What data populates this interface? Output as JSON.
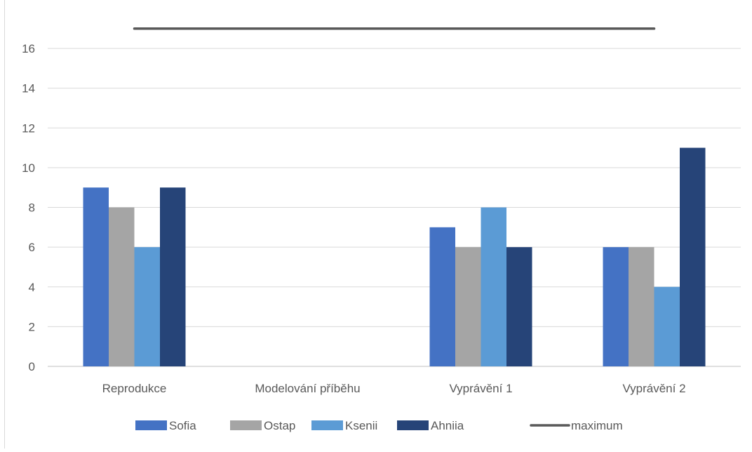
{
  "chart_data": {
    "type": "bar",
    "categories": [
      "Reprodukce",
      "Modelování příběhu",
      "Vyprávění 1",
      "Vyprávění 2"
    ],
    "series": [
      {
        "name": "Sofia",
        "values": [
          9,
          0,
          7,
          6
        ],
        "color": "#4472C4"
      },
      {
        "name": "Ostap",
        "values": [
          8,
          0,
          6,
          6
        ],
        "color": "#A5A5A5"
      },
      {
        "name": "Ksenii",
        "values": [
          6,
          0,
          8,
          4
        ],
        "color": "#5B9BD5"
      },
      {
        "name": "Ahniia",
        "values": [
          9,
          0,
          6,
          11
        ],
        "color": "#264478"
      }
    ],
    "line_series": {
      "name": "maximum",
      "value": 17,
      "color": "#595959"
    },
    "ylim": [
      0,
      16
    ],
    "yticks": [
      "0",
      "2",
      "4",
      "6",
      "8",
      "10",
      "12",
      "14",
      "16"
    ],
    "grid": true,
    "legend_position": "bottom",
    "title": "",
    "xlabel": "",
    "ylabel": ""
  }
}
